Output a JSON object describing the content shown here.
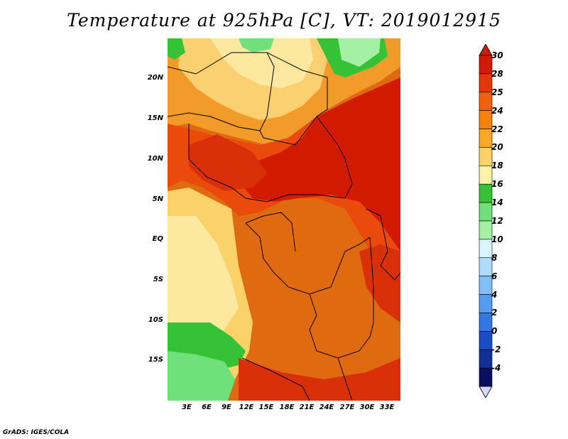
{
  "title": "Temperature at 925hPa [C], VT: 2019012915",
  "footer": "GrADS: IGES/COLA",
  "map": {
    "lat_labels": [
      "20N",
      "15N",
      "10N",
      "5N",
      "EQ",
      "5S",
      "10S",
      "15S"
    ],
    "lon_labels": [
      "3E",
      "6E",
      "9E",
      "12E",
      "15E",
      "18E",
      "21E",
      "24E",
      "27E",
      "30E",
      "33E"
    ]
  },
  "colorbar": {
    "levels": [
      "30",
      "28",
      "25",
      "24",
      "22",
      "20",
      "18",
      "16",
      "14",
      "12",
      "10",
      "8",
      "6",
      "4",
      "2",
      "0",
      "-2",
      "-4"
    ],
    "colors": [
      "#d11a00",
      "#e6350a",
      "#f0600e",
      "#f5820f",
      "#f9a828",
      "#fbd26a",
      "#fcf2a8",
      "#36c236",
      "#6fe07a",
      "#a4f0a4",
      "#d8f4ff",
      "#b0dcfc",
      "#82bef8",
      "#569cf0",
      "#3278e0",
      "#1a4cc4",
      "#103096",
      "#0a0f60"
    ],
    "top_arrow_color": "#c81e00",
    "bottom_arrow_color": "#d8d8f5"
  }
}
